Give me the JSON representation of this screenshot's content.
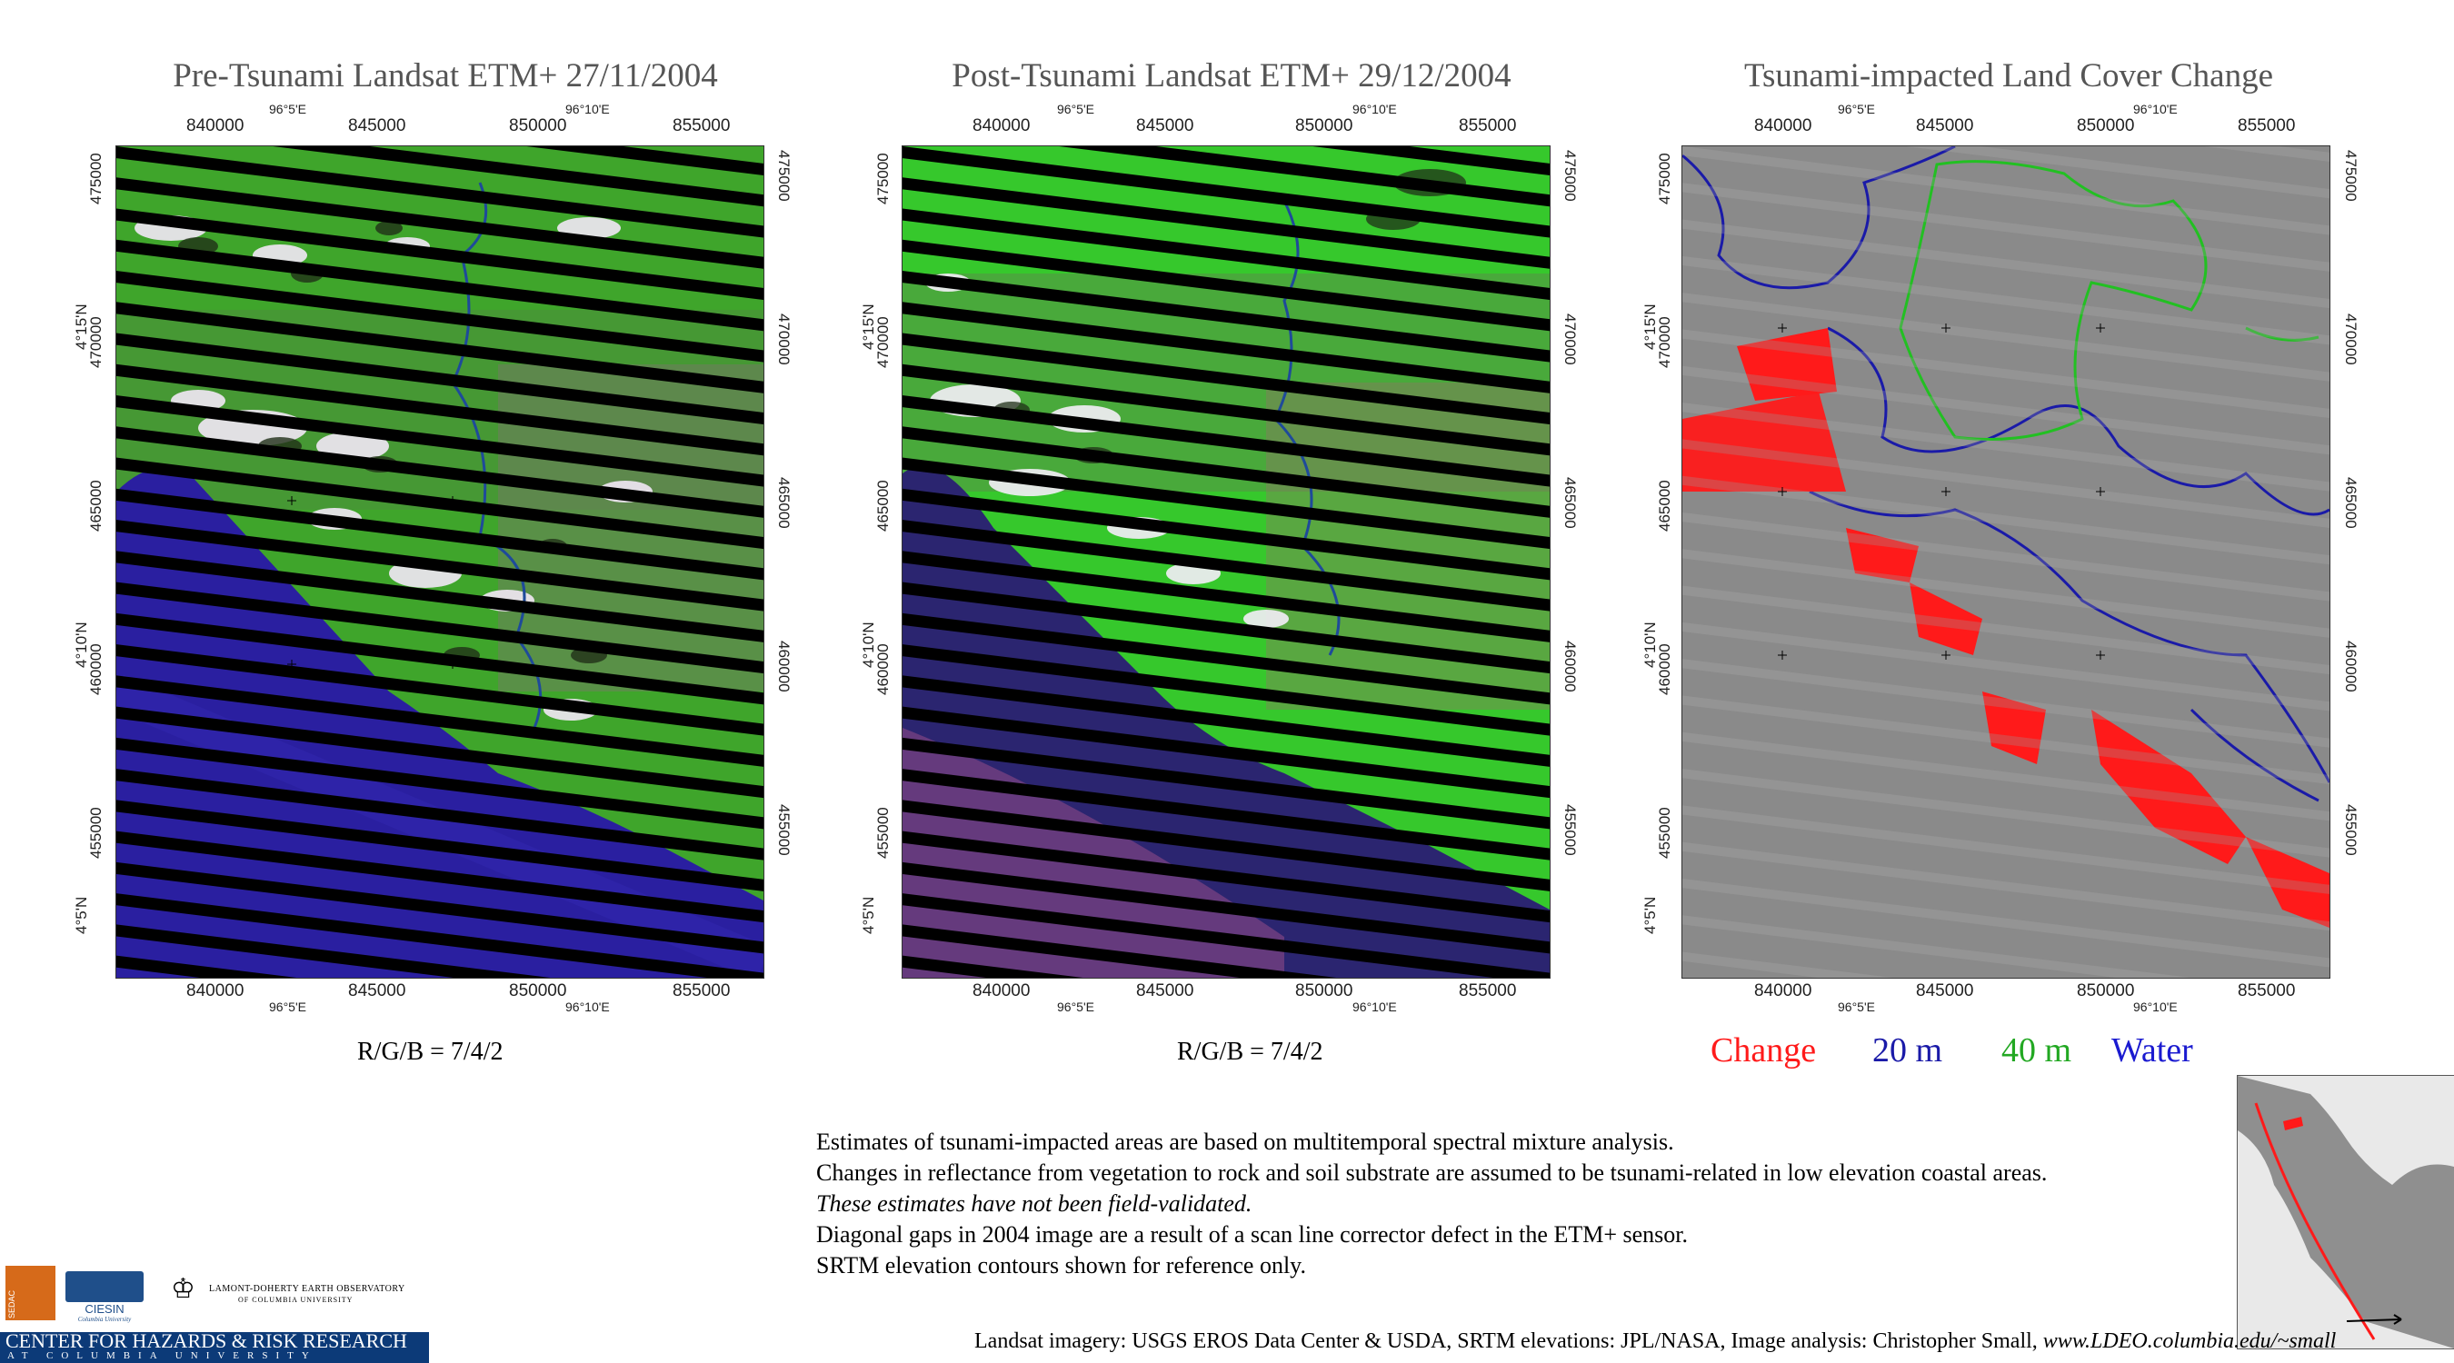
{
  "panels": [
    {
      "title": "Pre-Tsunami  Landsat ETM+    27/11/2004",
      "caption": "R/G/B = 7/4/2"
    },
    {
      "title": "Post-Tsunami  Landsat ETM+  29/12/2004",
      "caption": "R/G/B = 7/4/2"
    },
    {
      "title": "Tsunami-impacted Land Cover Change",
      "caption": ""
    }
  ],
  "easting_labels": [
    "840000",
    "845000",
    "850000",
    "855000"
  ],
  "longitude_labels": [
    "96°5'E",
    "96°10'E"
  ],
  "northing_labels": [
    "475000",
    "470000",
    "465000",
    "460000",
    "455000"
  ],
  "latitude_labels": [
    "4°15'N",
    "4°10'N",
    "4°5'N"
  ],
  "legend": [
    {
      "label": "Change",
      "color": "#ff1a1a"
    },
    {
      "label": "20 m",
      "color": "#1a1aa8"
    },
    {
      "label": "40 m",
      "color": "#22a822"
    },
    {
      "label": "Water",
      "color": "#1a1ad0"
    }
  ],
  "notes": {
    "line1": "Estimates of tsunami-impacted areas are based on multitemporal spectral mixture analysis.",
    "line2": "Changes in reflectance from vegetation to rock and soil substrate are assumed to be tsunami-related in low elevation coastal areas.",
    "line3": "These estimates have not been field-validated.",
    "line4": "Diagonal gaps in 2004 image are a result of a scan line corrector defect in the ETM+ sensor.",
    "line5": "SRTM elevation contours shown for reference only."
  },
  "credit": {
    "text": "Landsat imagery: USGS EROS Data Center & USDA,  SRTM elevations: JPL/NASA,   Image analysis:  Christopher Small,",
    "url": "www.LDEO.columbia.edu/~small"
  },
  "logos": {
    "sedac": "SEDAC",
    "ciesin": "CIESIN",
    "ciesin_sub": "Columbia University",
    "lamont_line1": "LAMONT-DOHERTY EARTH OBSERVATORY",
    "lamont_line2": "OF COLUMBIA UNIVERSITY",
    "chrr_line1": "CENTER FOR HAZARDS & RISK RESEARCH",
    "chrr_line2": "AT COLUMBIA UNIVERSITY"
  },
  "colors": {
    "vegetation": "#3fb02a",
    "sea_pre": "#2a1fa0",
    "sea_post": "#2b2570",
    "cloud": "#f2e8f6",
    "change": "#ff1a1a",
    "shaded_relief": "#8a8a8a"
  }
}
